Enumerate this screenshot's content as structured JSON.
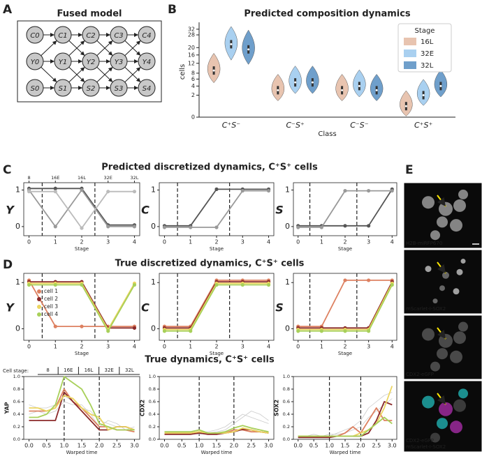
{
  "panels": {
    "A": {
      "label": "A",
      "title": "Fused model",
      "nodes": [
        [
          "C0",
          "C1",
          "C2",
          "C3",
          "C4"
        ],
        [
          "Y0",
          "Y1",
          "Y2",
          "Y3",
          "Y4"
        ],
        [
          "S0",
          "S1",
          "S2",
          "S3",
          "S4"
        ]
      ]
    },
    "B": {
      "label": "B"
    },
    "C": {
      "label": "C",
      "title": "Predicted discretized dynamics, C⁺S⁺ cells"
    },
    "D": {
      "label": "D",
      "title": "True discretized dynamics, C⁺S⁺ cells",
      "subtitle": "True dynamics, C⁺S⁺ cells"
    },
    "E": {
      "label": "E",
      "images": [
        {
          "captions": [
            "H2B-miRFP670"
          ]
        },
        {
          "captions": [
            "mScarlet-I-SOX2"
          ]
        },
        {
          "captions": [
            "CDX2-eGFP"
          ]
        },
        {
          "captions": [
            "CDX2-eGFP",
            "mScarlet-I-SOX2"
          ],
          "caption_colors": [
            "#2fd6d6",
            "#e040e0"
          ]
        }
      ]
    }
  },
  "chart_data": [
    {
      "type": "violin",
      "title": "Predicted composition dynamics",
      "ylabel": "cells",
      "xlabel": "Class",
      "categories": [
        "C⁺S⁻",
        "C⁻S⁺",
        "C⁻S⁻",
        "C⁺S⁺"
      ],
      "scale": "sqrt",
      "ylim": [
        0,
        34
      ],
      "yticks": [
        0,
        2,
        4,
        6,
        8,
        12,
        16,
        20,
        28,
        32
      ],
      "legend_title": "Stage",
      "legend": "upper right",
      "series": [
        {
          "name": "16L",
          "color": "#e8c4b0",
          "values": [
            9,
            3,
            3,
            0.5
          ]
        },
        {
          "name": "32E",
          "color": "#a9d0f0",
          "values": [
            22,
            5,
            4,
            2
          ]
        },
        {
          "name": "32L",
          "color": "#6f9fcb",
          "values": [
            19,
            5,
            3,
            4
          ]
        }
      ]
    },
    {
      "type": "line",
      "ylabel": "Y",
      "xlabel": "Stage",
      "x": [
        0,
        1,
        2,
        3,
        4
      ],
      "xlim": [
        -0.2,
        4.2
      ],
      "xticks": [
        0,
        1,
        2,
        3,
        4
      ],
      "ylim": [
        -0.25,
        1.2
      ],
      "yticks": [
        0,
        1
      ],
      "vlines": [
        0.5,
        2.5
      ],
      "markers": true,
      "stage_labels": [
        "8",
        "16E",
        "16L",
        "32E",
        "32L"
      ],
      "series": [
        {
          "color": "#555",
          "values": [
            1,
            1,
            1,
            0,
            0
          ]
        },
        {
          "color": "#999",
          "values": [
            1,
            0,
            1,
            0,
            0
          ]
        },
        {
          "color": "#bbb",
          "values": [
            1,
            1,
            0,
            1,
            1
          ]
        }
      ]
    },
    {
      "type": "line",
      "ylabel": "C",
      "xlabel": "Stage",
      "x": [
        0,
        1,
        2,
        3,
        4
      ],
      "xlim": [
        -0.2,
        4.2
      ],
      "xticks": [
        0,
        1,
        2,
        3,
        4
      ],
      "ylim": [
        -0.25,
        1.2
      ],
      "yticks": [
        0,
        1
      ],
      "vlines": [
        0.5,
        2.5
      ],
      "markers": true,
      "series": [
        {
          "color": "#555",
          "values": [
            0,
            0,
            1,
            1,
            1
          ]
        },
        {
          "color": "#999",
          "values": [
            0,
            0,
            0,
            1,
            1
          ]
        }
      ]
    },
    {
      "type": "line",
      "ylabel": "S",
      "xlabel": "Stage",
      "x": [
        0,
        1,
        2,
        3,
        4
      ],
      "xlim": [
        -0.2,
        4.2
      ],
      "xticks": [
        0,
        1,
        2,
        3,
        4
      ],
      "ylim": [
        -0.25,
        1.2
      ],
      "yticks": [
        0,
        1
      ],
      "vlines": [
        0.5,
        2.5
      ],
      "markers": true,
      "series": [
        {
          "color": "#555",
          "values": [
            0,
            0,
            0,
            0,
            1
          ]
        },
        {
          "color": "#999",
          "values": [
            0,
            0,
            1,
            1,
            1
          ]
        }
      ]
    },
    {
      "type": "line",
      "ylabel": "Y",
      "xlabel": "Stage",
      "x": [
        0,
        1,
        2,
        3,
        4
      ],
      "xlim": [
        -0.2,
        4.2
      ],
      "xticks": [
        0,
        1,
        2,
        3,
        4
      ],
      "ylim": [
        -0.25,
        1.2
      ],
      "yticks": [
        0,
        1
      ],
      "vlines": [
        0.5,
        2.5
      ],
      "markers": true,
      "legend": "center left",
      "series": [
        {
          "name": "cell 1",
          "color": "#dd8060",
          "values": [
            1,
            0,
            0,
            0,
            0
          ]
        },
        {
          "name": "cell 2",
          "color": "#8b2a2a",
          "values": [
            1,
            1,
            1,
            0,
            0
          ]
        },
        {
          "name": "cell 3",
          "color": "#ecd560",
          "values": [
            1,
            1,
            1,
            0,
            1
          ]
        },
        {
          "name": "cell 4",
          "color": "#a8d05a",
          "values": [
            1,
            1,
            1,
            0,
            1
          ]
        }
      ]
    },
    {
      "type": "line",
      "ylabel": "C",
      "xlabel": "Stage",
      "x": [
        0,
        1,
        2,
        3,
        4
      ],
      "xlim": [
        -0.2,
        4.2
      ],
      "xticks": [
        0,
        1,
        2,
        3,
        4
      ],
      "ylim": [
        -0.25,
        1.2
      ],
      "yticks": [
        0,
        1
      ],
      "vlines": [
        0.5,
        2.5
      ],
      "markers": true,
      "series": [
        {
          "color": "#dd8060",
          "values": [
            0,
            0,
            1,
            1,
            1
          ]
        },
        {
          "color": "#8b2a2a",
          "values": [
            0,
            0,
            1,
            1,
            1
          ]
        },
        {
          "color": "#ecd560",
          "values": [
            0,
            0,
            1,
            1,
            1
          ]
        },
        {
          "color": "#a8d05a",
          "values": [
            0,
            0,
            1,
            1,
            1
          ]
        }
      ]
    },
    {
      "type": "line",
      "ylabel": "S",
      "xlabel": "Stage",
      "x": [
        0,
        1,
        2,
        3,
        4
      ],
      "xlim": [
        -0.2,
        4.2
      ],
      "xticks": [
        0,
        1,
        2,
        3,
        4
      ],
      "ylim": [
        -0.25,
        1.2
      ],
      "yticks": [
        0,
        1
      ],
      "vlines": [
        0.5,
        2.5
      ],
      "markers": true,
      "series": [
        {
          "color": "#dd8060",
          "values": [
            0,
            0,
            1,
            1,
            1
          ]
        },
        {
          "color": "#8b2a2a",
          "values": [
            0,
            0,
            0,
            0,
            1
          ]
        },
        {
          "color": "#ecd560",
          "values": [
            0,
            0,
            0,
            0,
            1
          ]
        },
        {
          "color": "#a8d05a",
          "values": [
            0,
            0,
            0,
            0,
            1
          ]
        }
      ]
    },
    {
      "type": "line",
      "ylabel": "YAP",
      "xlabel": "Warped time",
      "x": [
        0,
        0.25,
        0.5,
        0.75,
        1,
        1.25,
        1.5,
        1.75,
        2,
        2.25,
        2.5,
        2.75,
        3
      ],
      "xlim": [
        -0.15,
        3.15
      ],
      "xticks": [
        {
          "value": 0,
          "label": "0.0"
        },
        {
          "value": 0.5,
          "label": "0.5"
        },
        {
          "value": 1,
          "label": "1.0"
        },
        {
          "value": 1.5,
          "label": "1.5"
        },
        {
          "value": 2,
          "label": "2.0"
        },
        {
          "value": 2.5,
          "label": "2.5"
        },
        {
          "value": 3,
          "label": "3.0"
        }
      ],
      "ylim": [
        0,
        1
      ],
      "yticks": [
        {
          "value": 0,
          "label": "0.0"
        },
        {
          "value": 0.2,
          "label": "0.2"
        },
        {
          "value": 0.4,
          "label": "0.4"
        },
        {
          "value": 0.6,
          "label": "0.6"
        },
        {
          "value": 0.8,
          "label": "0.8"
        },
        {
          "value": 1,
          "label": "1.0"
        }
      ],
      "vlines": [
        1,
        2
      ],
      "stage_header": "Cell stage:",
      "stage_labels": [
        "8",
        "16E",
        "16L",
        "32E",
        "32L"
      ],
      "series": [
        {
          "color": "#ccc",
          "values": [
            0.55,
            0.5,
            0.5,
            0.55,
            0.7,
            0.6,
            0.5,
            0.45,
            0.3,
            0.25,
            0.2,
            0.2,
            0.15
          ]
        },
        {
          "color": "#ccc",
          "values": [
            0.4,
            0.45,
            0.4,
            0.45,
            0.6,
            0.55,
            0.55,
            0.4,
            0.2,
            0.3,
            0.25,
            0.15,
            0.2
          ]
        },
        {
          "color": "#dd8060",
          "values": [
            0.45,
            0.45,
            0.45,
            0.5,
            0.8,
            0.6,
            0.5,
            0.35,
            0.2,
            0.2,
            0.15,
            0.15,
            0.12
          ]
        },
        {
          "color": "#8b2a2a",
          "values": [
            0.3,
            0.3,
            0.3,
            0.3,
            0.75,
            0.6,
            0.45,
            0.3,
            0.15,
            0.15,
            0.2,
            0.2,
            0.15
          ]
        },
        {
          "color": "#ecd560",
          "values": [
            0.5,
            0.5,
            0.45,
            0.5,
            0.7,
            0.65,
            0.5,
            0.4,
            0.35,
            0.15,
            0.2,
            0.2,
            0.15
          ]
        },
        {
          "color": "#a8d05a",
          "values": [
            0.35,
            0.35,
            0.4,
            0.55,
            1,
            0.9,
            0.8,
            0.55,
            0.25,
            0.2,
            0.15,
            0.15,
            0.15
          ]
        }
      ]
    },
    {
      "type": "line",
      "ylabel": "CDX2",
      "xlabel": "Warped time",
      "x": [
        0,
        0.25,
        0.5,
        0.75,
        1,
        1.25,
        1.5,
        1.75,
        2,
        2.25,
        2.5,
        2.75,
        3
      ],
      "xlim": [
        -0.15,
        3.15
      ],
      "xticks": [
        {
          "value": 0,
          "label": "0.0"
        },
        {
          "value": 0.5,
          "label": "0.5"
        },
        {
          "value": 1,
          "label": "1.0"
        },
        {
          "value": 1.5,
          "label": "1.5"
        },
        {
          "value": 2,
          "label": "2.0"
        },
        {
          "value": 2.5,
          "label": "2.5"
        },
        {
          "value": 3,
          "label": "3.0"
        }
      ],
      "ylim": [
        0,
        1
      ],
      "yticks": [
        {
          "value": 0,
          "label": "0.0"
        },
        {
          "value": 0.2,
          "label": "0.2"
        },
        {
          "value": 0.4,
          "label": "0.4"
        },
        {
          "value": 0.6,
          "label": "0.6"
        },
        {
          "value": 0.8,
          "label": "0.8"
        },
        {
          "value": 1,
          "label": "1.0"
        }
      ],
      "vlines": [
        1,
        2
      ],
      "series": [
        {
          "color": "#ccc",
          "values": [
            0.1,
            0.1,
            0.12,
            0.1,
            0.1,
            0.12,
            0.15,
            0.2,
            0.3,
            0.4,
            0.35,
            0.3,
            0.25
          ]
        },
        {
          "color": "#ccc",
          "values": [
            0.08,
            0.1,
            0.1,
            0.1,
            0.08,
            0.1,
            0.12,
            0.15,
            0.25,
            0.35,
            0.45,
            0.4,
            0.3
          ]
        },
        {
          "color": "#dd8060",
          "values": [
            0.1,
            0.1,
            0.1,
            0.1,
            0.12,
            0.1,
            0.1,
            0.1,
            0.15,
            0.15,
            0.12,
            0.12,
            0.1
          ]
        },
        {
          "color": "#8b2a2a",
          "values": [
            0.08,
            0.08,
            0.08,
            0.08,
            0.1,
            0.08,
            0.08,
            0.1,
            0.12,
            0.16,
            0.15,
            0.12,
            0.1
          ]
        },
        {
          "color": "#ecd560",
          "values": [
            0.1,
            0.1,
            0.1,
            0.1,
            0.12,
            0.1,
            0.1,
            0.1,
            0.12,
            0.18,
            0.15,
            0.12,
            0.1
          ]
        },
        {
          "color": "#a8d05a",
          "values": [
            0.12,
            0.12,
            0.12,
            0.12,
            0.15,
            0.1,
            0.1,
            0.12,
            0.18,
            0.22,
            0.18,
            0.15,
            0.12
          ]
        }
      ]
    },
    {
      "type": "line",
      "ylabel": "SOX2",
      "xlabel": "Warped time",
      "x": [
        0,
        0.25,
        0.5,
        0.75,
        1,
        1.25,
        1.5,
        1.75,
        2,
        2.25,
        2.5,
        2.75,
        3
      ],
      "xlim": [
        -0.15,
        3.15
      ],
      "xticks": [
        {
          "value": 0,
          "label": "0.0"
        },
        {
          "value": 0.5,
          "label": "0.5"
        },
        {
          "value": 1,
          "label": "1.0"
        },
        {
          "value": 1.5,
          "label": "1.5"
        },
        {
          "value": 2,
          "label": "2.0"
        },
        {
          "value": 2.5,
          "label": "2.5"
        },
        {
          "value": 3,
          "label": "3.0"
        }
      ],
      "ylim": [
        0,
        1
      ],
      "yticks": [
        {
          "value": 0,
          "label": "0.0"
        },
        {
          "value": 0.2,
          "label": "0.2"
        },
        {
          "value": 0.4,
          "label": "0.4"
        },
        {
          "value": 0.6,
          "label": "0.6"
        },
        {
          "value": 0.8,
          "label": "0.8"
        },
        {
          "value": 1,
          "label": "1.0"
        }
      ],
      "vlines": [
        1,
        2
      ],
      "series": [
        {
          "color": "#ccc",
          "values": [
            0.05,
            0.05,
            0.08,
            0.05,
            0.05,
            0.1,
            0.15,
            0.2,
            0.3,
            0.5,
            0.6,
            0.7,
            0.75
          ]
        },
        {
          "color": "#ccc",
          "values": [
            0.03,
            0.05,
            0.05,
            0.05,
            0.08,
            0.08,
            0.1,
            0.15,
            0.2,
            0.35,
            0.45,
            0.55,
            0.65
          ]
        },
        {
          "color": "#dd8060",
          "values": [
            0.05,
            0.05,
            0.05,
            0.05,
            0.05,
            0.05,
            0.1,
            0.2,
            0.1,
            0.3,
            0.5,
            0.3,
            0.3
          ]
        },
        {
          "color": "#8b2a2a",
          "values": [
            0.03,
            0.03,
            0.03,
            0.03,
            0.03,
            0.05,
            0.05,
            0.05,
            0.05,
            0.1,
            0.3,
            0.6,
            0.55
          ]
        },
        {
          "color": "#ecd560",
          "values": [
            0.05,
            0.05,
            0.05,
            0.05,
            0.05,
            0.05,
            0.05,
            0.05,
            0.1,
            0.15,
            0.25,
            0.5,
            0.85
          ]
        },
        {
          "color": "#a8d05a",
          "values": [
            0.05,
            0.05,
            0.05,
            0.05,
            0.05,
            0.05,
            0.05,
            0.05,
            0.05,
            0.15,
            0.25,
            0.35,
            0.25
          ]
        }
      ]
    }
  ]
}
